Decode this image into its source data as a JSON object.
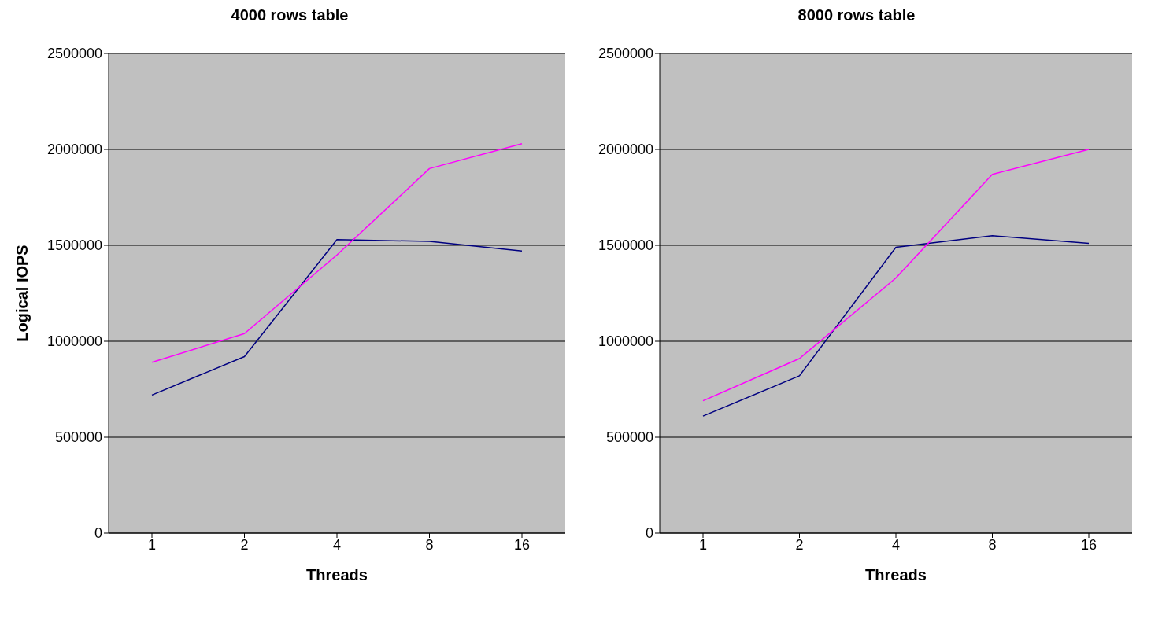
{
  "chart_data": [
    {
      "type": "line",
      "title": "4000 rows table",
      "xlabel": "Threads",
      "ylabel": "Logical IOPS",
      "categories": [
        "1",
        "2",
        "4",
        "8",
        "16"
      ],
      "ylim": [
        0,
        2500000
      ],
      "yticks": [
        0,
        500000,
        1000000,
        1500000,
        2000000,
        2500000
      ],
      "grid": "y",
      "legend": false,
      "marker": "none",
      "line_style": "solid",
      "series": [
        {
          "color": "#000080",
          "values": [
            720000,
            920000,
            1530000,
            1520000,
            1470000
          ]
        },
        {
          "color": "#ff00ff",
          "values": [
            890000,
            1040000,
            1450000,
            1900000,
            2030000
          ]
        }
      ]
    },
    {
      "type": "line",
      "title": "8000 rows table",
      "xlabel": "Threads",
      "categories": [
        "1",
        "2",
        "4",
        "8",
        "16"
      ],
      "ylim": [
        0,
        2500000
      ],
      "yticks": [
        0,
        500000,
        1000000,
        1500000,
        2000000,
        2500000
      ],
      "grid": "y",
      "legend": false,
      "marker": "none",
      "line_style": "solid",
      "series": [
        {
          "color": "#000080",
          "values": [
            610000,
            820000,
            1490000,
            1550000,
            1510000
          ]
        },
        {
          "color": "#ff00ff",
          "values": [
            690000,
            910000,
            1330000,
            1870000,
            2000000
          ]
        }
      ]
    }
  ]
}
